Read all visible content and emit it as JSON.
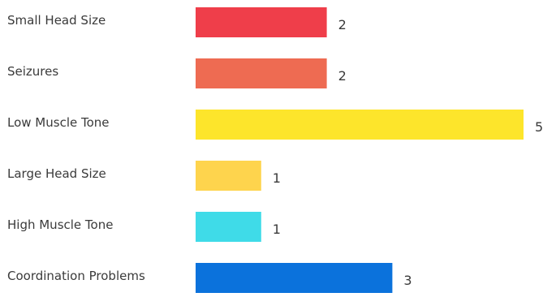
{
  "chart_data": {
    "type": "bar",
    "orientation": "horizontal",
    "categories": [
      "Small Head Size",
      "Seizures",
      "Low Muscle Tone",
      "Large Head Size",
      "High Muscle Tone",
      "Coordination Problems"
    ],
    "values": [
      2,
      2,
      5,
      1,
      1,
      3
    ],
    "colors": [
      "#ef3e4a",
      "#ee6b52",
      "#fde52b",
      "#fed44d",
      "#3fdbe8",
      "#0b72dc"
    ],
    "title": "",
    "xlabel": "",
    "ylabel": "",
    "xlim": [
      0,
      5
    ],
    "grid": false,
    "data_labels": true
  }
}
